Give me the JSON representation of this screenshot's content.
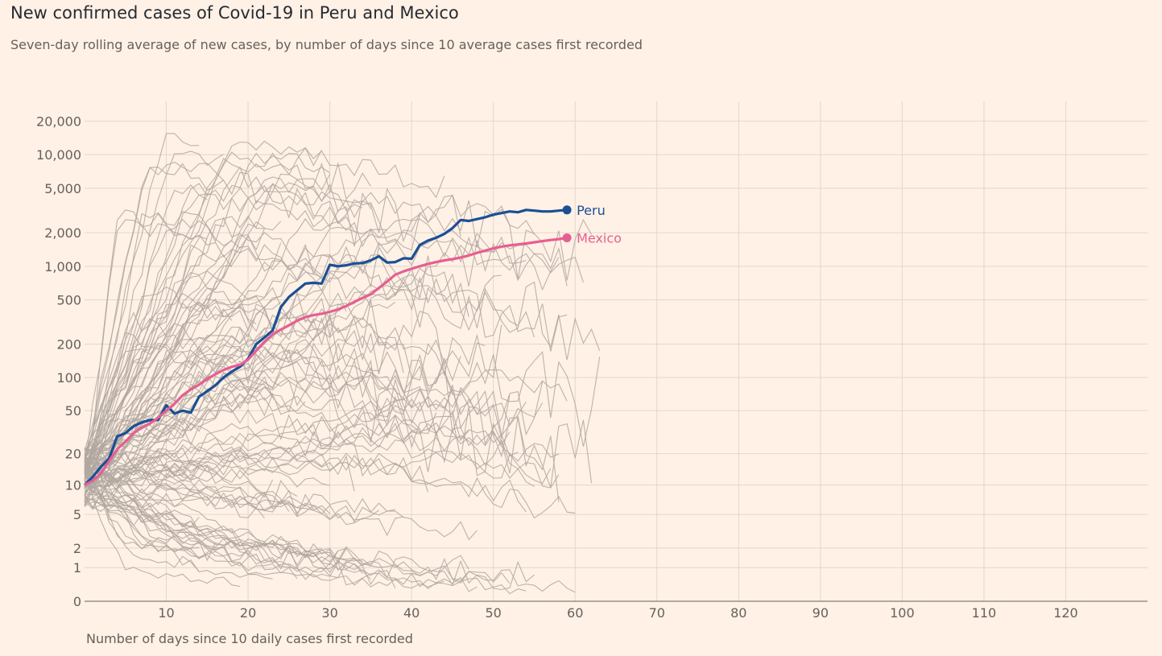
{
  "title": "New confirmed cases of Covid-19 in Peru and Mexico",
  "subtitle": "Seven-day rolling average of new cases, by number of days since 10 average cases first recorded",
  "colors": {
    "background": "#fff1e5",
    "grid": "#e2d6cc",
    "other": "#b0a7a0",
    "peru": "#1a4f96",
    "mexico": "#e65f91"
  },
  "chart_data": {
    "type": "line",
    "title": "New confirmed cases of Covid-19 in Peru and Mexico",
    "xlabel": "Number of days since 10 daily cases first recorded",
    "ylabel": "",
    "xlim": [
      0,
      130
    ],
    "ylim": [
      0,
      30000
    ],
    "y_scale": "log",
    "grid": true,
    "legend": "direct labels at line ends",
    "x_ticks": [
      10,
      20,
      30,
      40,
      50,
      60,
      70,
      80,
      90,
      100,
      110,
      120
    ],
    "y_ticks": [
      0,
      1,
      2,
      5,
      10,
      20,
      50,
      100,
      200,
      500,
      1000,
      2000,
      5000,
      10000,
      20000
    ],
    "y_tick_labels": [
      "0",
      "1",
      "2",
      "5",
      "10",
      "20",
      "50",
      "100",
      "200",
      "500",
      "1,000",
      "2,000",
      "5,000",
      "10,000",
      "20,000"
    ],
    "series": [
      {
        "name": "Peru",
        "highlight": true,
        "color": "#1a4f96",
        "x": [
          0,
          1,
          2,
          3,
          4,
          5,
          6,
          7,
          8,
          9,
          10,
          11,
          12,
          13,
          14,
          15,
          16,
          17,
          18,
          19,
          20,
          21,
          22,
          23,
          24,
          25,
          26,
          27,
          28,
          29,
          30,
          31,
          32,
          33,
          34,
          35,
          36,
          37,
          38,
          39,
          40,
          41,
          42,
          43,
          44,
          45,
          46,
          47,
          48,
          49,
          50,
          51,
          52,
          53,
          54,
          55,
          56,
          57,
          58,
          59
        ],
        "values": [
          10,
          12,
          15,
          18,
          29,
          31,
          36,
          39,
          41,
          41,
          56,
          47,
          50,
          48,
          67,
          75,
          85,
          100,
          113,
          125,
          148,
          200,
          230,
          265,
          430,
          530,
          610,
          700,
          710,
          700,
          1030,
          1000,
          1020,
          1060,
          1070,
          1130,
          1230,
          1080,
          1090,
          1180,
          1170,
          1550,
          1700,
          1800,
          1950,
          2200,
          2600,
          2550,
          2650,
          2750,
          2900,
          3000,
          3100,
          3050,
          3200,
          3150,
          3100,
          3100,
          3150,
          3200
        ]
      },
      {
        "name": "Mexico",
        "highlight": true,
        "color": "#e65f91",
        "x": [
          0,
          1,
          2,
          3,
          4,
          5,
          6,
          7,
          8,
          9,
          10,
          11,
          12,
          13,
          14,
          15,
          16,
          17,
          18,
          19,
          20,
          21,
          22,
          23,
          24,
          25,
          26,
          27,
          28,
          29,
          30,
          31,
          32,
          33,
          34,
          35,
          36,
          37,
          38,
          39,
          40,
          41,
          42,
          43,
          44,
          45,
          46,
          47,
          48,
          49,
          50,
          51,
          52,
          53,
          54,
          55,
          56,
          57,
          58,
          59
        ],
        "values": [
          10,
          11,
          13,
          17,
          22,
          26,
          31,
          35,
          38,
          43,
          50,
          58,
          69,
          78,
          86,
          97,
          107,
          117,
          125,
          130,
          145,
          175,
          210,
          245,
          270,
          295,
          325,
          350,
          365,
          375,
          390,
          410,
          440,
          480,
          520,
          560,
          640,
          730,
          840,
          900,
          950,
          1000,
          1050,
          1090,
          1130,
          1160,
          1200,
          1250,
          1320,
          1380,
          1450,
          1500,
          1540,
          1570,
          1600,
          1640,
          1680,
          1720,
          1750,
          1800
        ]
      }
    ]
  }
}
